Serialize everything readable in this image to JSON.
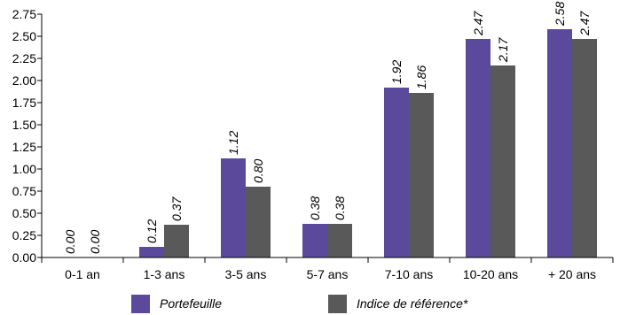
{
  "chart_data": {
    "type": "bar",
    "categories": [
      "0-1 an",
      "1-3 ans",
      "3-5 ans",
      "5-7 ans",
      "7-10 ans",
      "10-20 ans",
      "+ 20 ans"
    ],
    "series": [
      {
        "name": "Portefeuille",
        "values": [
          0.0,
          0.12,
          1.12,
          0.38,
          1.92,
          2.47,
          2.58
        ],
        "labels": [
          "0.00",
          "0.12",
          "1.12",
          "0.38",
          "1.92",
          "2.47",
          "2.58"
        ],
        "color": "#5B4A9B"
      },
      {
        "name": "Indice de référence*",
        "values": [
          0.0,
          0.37,
          0.8,
          0.38,
          1.86,
          2.17,
          2.47
        ],
        "labels": [
          "0.00",
          "0.37",
          "0.80",
          "0.38",
          "1.86",
          "2.17",
          "2.47"
        ],
        "color": "#595959"
      }
    ],
    "ylim": [
      0,
      2.75
    ],
    "yticks": [
      "0.00",
      "0.25",
      "0.50",
      "0.75",
      "1.00",
      "1.25",
      "1.50",
      "1.75",
      "2.00",
      "2.25",
      "2.50",
      "2.75"
    ],
    "title": "",
    "xlabel": "",
    "ylabel": "",
    "grid": false,
    "legend_position": "bottom"
  }
}
